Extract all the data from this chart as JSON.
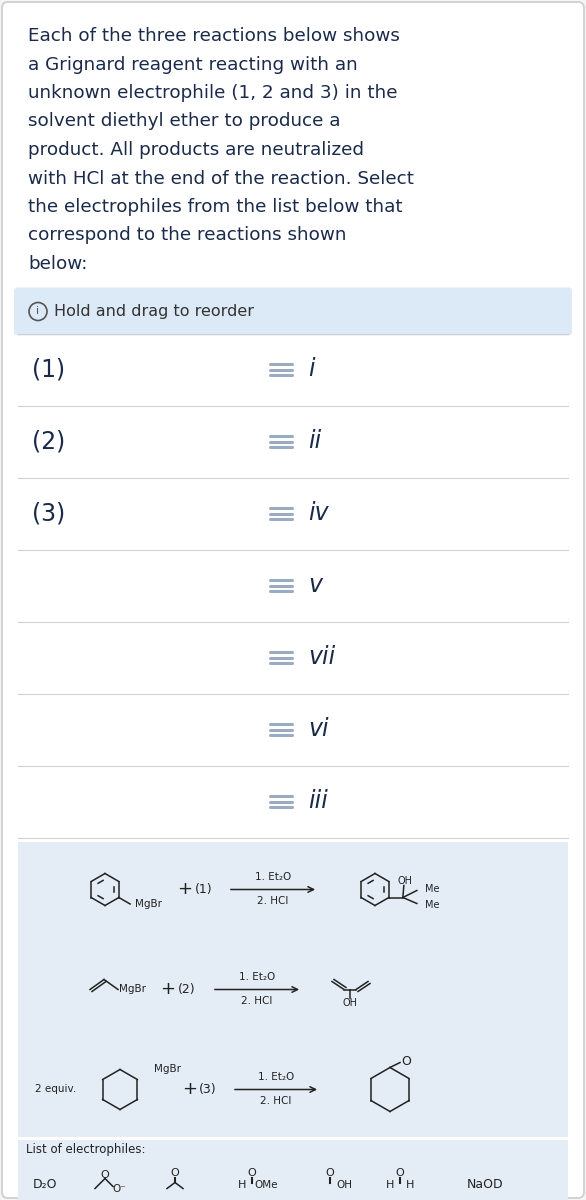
{
  "background_color": "#f5f5f5",
  "card_bg": "#ffffff",
  "card_border": "#cccccc",
  "title_text_lines": [
    "Each of the three reactions below shows",
    "a Grignard reagent reacting with an",
    "unknown electrophile (1, 2 and 3) in the",
    "solvent diethyl ether to produce a",
    "product. All products are neutralized",
    "with HCl at the end of the reaction. Select",
    "the electrophiles from the list below that",
    "correspond to the reactions shown",
    "below:"
  ],
  "title_color": "#1a2a4a",
  "hold_drag_bg": "#dce9f7",
  "hold_drag_text": "Hold and drag to reorder",
  "rows": [
    {
      "label": "(1)",
      "roman": "i"
    },
    {
      "label": "(2)",
      "roman": "ii"
    },
    {
      "label": "(3)",
      "roman": "iv"
    },
    {
      "label": "",
      "roman": "v"
    },
    {
      "label": "",
      "roman": "vii"
    },
    {
      "label": "",
      "roman": "vi"
    },
    {
      "label": "",
      "roman": "iii"
    }
  ],
  "row_label_color": "#1a2a4a",
  "row_roman_color": "#1a2a4a",
  "row_lines_color": "#9aacbf",
  "row_border_color": "#d0d0d0",
  "reactions_bg": "#e4ecf5",
  "lc": "#222222"
}
